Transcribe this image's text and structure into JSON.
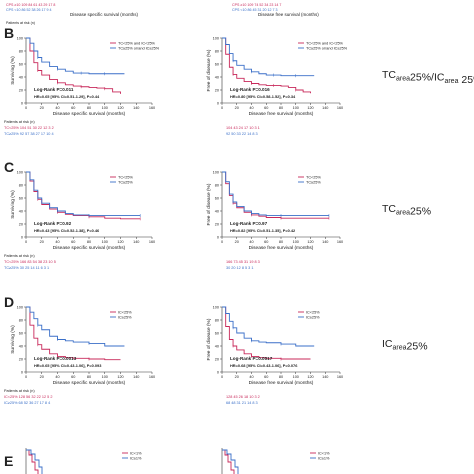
{
  "colors": {
    "red": "#c8285a",
    "blue": "#3a6fc8",
    "axis": "#333333",
    "text": "#222222"
  },
  "top_strip": {
    "left_rows": [
      "Patients at risk (n)",
      "CPS ≥10  109   84   61   43   29   17   8",
      "CPS <10  86   52   38   26   17   9   4"
    ],
    "left_xlabel": "Disease specific survival (months)",
    "right_rows": [
      "CPS ≥10  109   74   52   34   23   14   7",
      "CPS <10  86   45   31   20   12   7   3"
    ],
    "right_xlabel": "Disease free survival (months)"
  },
  "sections": [
    {
      "letter": "B",
      "side_label_html": "TC<sub>area</sub>25%/IC<sub>area</sub> 25%",
      "left_stats": [
        "Log-Rank P=0.011",
        "HR=0.65 [95% CI=0.51-1.29], P=0.44"
      ],
      "right_stats": [
        "Log-Rank P=0.016",
        "HR=0.80 [95% CI=0.58-1.52], P=0.34"
      ],
      "legend": [
        "TC<25% and IC<25%",
        "TC≥25% or/and IC≥25%"
      ],
      "risk_left": [
        "Patients at risk (n)",
        "TC<25%  104   51   30   22   12   3   2",
        "TC≥25%  92   57   38   27   17   10   4"
      ],
      "risk_right": [
        "104   43   24   17   10   3   1",
        "92   50   33   22   14   8   3"
      ]
    },
    {
      "letter": "C",
      "side_label_html": "TC<sub>area</sub>25%",
      "left_stats": [
        "Log-Rank P=0.92",
        "HR=0.43 [95% CI=0.52-1.38], P=0.46"
      ],
      "right_stats": [
        "Log-Rank P=0.97",
        "HR=0.82 [95% CI=0.51-1.35], P=0.42"
      ],
      "legend": [
        "TC<25%",
        "TC≥25%"
      ],
      "risk_left": [
        "Patients at risk (n)",
        "TC<25%  166   83   54   38   23   10   5",
        "TC≥25%  30   25   14   11   6   3   1"
      ],
      "risk_right": [
        "166   73   45   31   19   8   3",
        "30   20   12   8   5   3   1"
      ]
    },
    {
      "letter": "D",
      "side_label_html": "IC<sub>area</sub>25%",
      "left_stats": [
        "Log-Rank P=0.0013",
        "HR=0.65 [95% CI=0.43-1.06], P=0.093"
      ],
      "right_stats": [
        "Log-Rank P=0.0017",
        "HR=0.68 [95% CI=0.43-1.06], P=0.076"
      ],
      "legend": [
        "IC<25%",
        "IC≥25%"
      ],
      "risk_left": [
        "Patients at risk (n)",
        "IC<25%  128   56   32   22   12   5   2",
        "IC≥25%  68   52   36   27   17   8   4"
      ],
      "risk_right": [
        "128   45   26   18   10   3   2",
        "68   48   31   21   14   8   3"
      ]
    }
  ],
  "section_e": {
    "letter": "E",
    "legend": [
      "IC<1%",
      "IC≥1%"
    ]
  },
  "chart_data": [
    {
      "type": "line",
      "panel": "B-left",
      "xlabel": "Disease specific survival (months)",
      "ylabel": "Surviving (%)",
      "xlim": [
        0,
        160
      ],
      "ylim": [
        0,
        100
      ],
      "xticks": [
        0,
        20,
        40,
        60,
        80,
        100,
        120,
        140,
        160
      ],
      "yticks": [
        0,
        20,
        40,
        60,
        80,
        100
      ],
      "series": [
        {
          "color": "red",
          "x": [
            0,
            5,
            10,
            15,
            20,
            30,
            40,
            50,
            60,
            70,
            80,
            90,
            100,
            110,
            120
          ],
          "y": [
            100,
            80,
            62,
            50,
            43,
            36,
            31,
            28,
            26,
            25,
            24,
            23,
            22,
            17,
            14
          ]
        },
        {
          "color": "blue",
          "x": [
            0,
            5,
            10,
            15,
            20,
            30,
            40,
            50,
            60,
            70,
            80,
            90,
            100,
            115,
            125
          ],
          "y": [
            100,
            92,
            80,
            70,
            63,
            56,
            52,
            49,
            46,
            46,
            45,
            45,
            45,
            45,
            45
          ]
        }
      ]
    },
    {
      "type": "line",
      "panel": "B-right",
      "xlabel": "Disease free survival (months)",
      "ylabel": "Free of disease (%)",
      "xlim": [
        0,
        160
      ],
      "ylim": [
        0,
        100
      ],
      "xticks": [
        0,
        20,
        40,
        60,
        80,
        100,
        120,
        140,
        160
      ],
      "yticks": [
        0,
        20,
        40,
        60,
        80,
        100
      ],
      "series": [
        {
          "color": "red",
          "x": [
            0,
            5,
            10,
            15,
            20,
            30,
            40,
            50,
            60,
            70,
            80,
            90,
            100,
            110,
            120
          ],
          "y": [
            100,
            75,
            55,
            44,
            38,
            33,
            30,
            28,
            27,
            27,
            26,
            24,
            20,
            17,
            15
          ]
        },
        {
          "color": "blue",
          "x": [
            0,
            5,
            10,
            15,
            20,
            30,
            40,
            50,
            60,
            70,
            80,
            90,
            100,
            115,
            125
          ],
          "y": [
            100,
            90,
            76,
            65,
            58,
            52,
            48,
            45,
            43,
            43,
            42,
            42,
            42,
            42,
            42
          ]
        }
      ]
    },
    {
      "type": "line",
      "panel": "C-left",
      "xlabel": "Disease specific survival (months)",
      "ylabel": "Surviving (%)",
      "xlim": [
        0,
        160
      ],
      "ylim": [
        0,
        100
      ],
      "xticks": [
        0,
        20,
        40,
        60,
        80,
        100,
        120,
        140,
        160
      ],
      "yticks": [
        0,
        20,
        40,
        60,
        80,
        100
      ],
      "series": [
        {
          "color": "red",
          "x": [
            0,
            5,
            10,
            15,
            20,
            30,
            40,
            50,
            60,
            80,
            100,
            120,
            145
          ],
          "y": [
            100,
            86,
            70,
            58,
            50,
            43,
            38,
            35,
            33,
            31,
            29,
            28,
            28
          ]
        },
        {
          "color": "blue",
          "x": [
            0,
            5,
            10,
            15,
            20,
            30,
            40,
            50,
            60,
            80,
            100,
            120,
            145
          ],
          "y": [
            100,
            88,
            72,
            60,
            52,
            45,
            40,
            36,
            34,
            33,
            33,
            33,
            33
          ]
        }
      ]
    },
    {
      "type": "line",
      "panel": "C-right",
      "xlabel": "Disease free survival (months)",
      "ylabel": "Free of disease (%)",
      "xlim": [
        0,
        160
      ],
      "ylim": [
        0,
        100
      ],
      "xticks": [
        0,
        20,
        40,
        60,
        80,
        100,
        120,
        140,
        160
      ],
      "yticks": [
        0,
        20,
        40,
        60,
        80,
        100
      ],
      "series": [
        {
          "color": "red",
          "x": [
            0,
            5,
            10,
            15,
            20,
            30,
            40,
            50,
            60,
            80,
            100,
            120,
            145
          ],
          "y": [
            100,
            82,
            64,
            52,
            45,
            38,
            34,
            32,
            30,
            29,
            29,
            29,
            29
          ]
        },
        {
          "color": "blue",
          "x": [
            0,
            5,
            10,
            15,
            20,
            30,
            40,
            50,
            60,
            80,
            100,
            120,
            145
          ],
          "y": [
            100,
            85,
            66,
            54,
            47,
            40,
            36,
            34,
            33,
            33,
            33,
            33,
            33
          ]
        }
      ]
    },
    {
      "type": "line",
      "panel": "D-left",
      "xlabel": "Disease specific survival (months)",
      "ylabel": "Surviving (%)",
      "xlim": [
        0,
        160
      ],
      "ylim": [
        0,
        100
      ],
      "xticks": [
        0,
        20,
        40,
        60,
        80,
        100,
        120,
        140,
        160
      ],
      "yticks": [
        0,
        20,
        40,
        60,
        80,
        100
      ],
      "series": [
        {
          "color": "red",
          "x": [
            0,
            5,
            10,
            15,
            20,
            30,
            40,
            50,
            60,
            80,
            100,
            120
          ],
          "y": [
            100,
            72,
            52,
            42,
            35,
            28,
            24,
            22,
            21,
            20,
            19,
            19
          ]
        },
        {
          "color": "blue",
          "x": [
            0,
            5,
            10,
            15,
            20,
            30,
            40,
            50,
            60,
            80,
            100,
            125
          ],
          "y": [
            100,
            92,
            82,
            72,
            65,
            55,
            50,
            48,
            46,
            44,
            40,
            40
          ]
        }
      ]
    },
    {
      "type": "line",
      "panel": "D-right",
      "xlabel": "Disease free survival (months)",
      "ylabel": "Free of disease (%)",
      "xlim": [
        0,
        160
      ],
      "ylim": [
        0,
        100
      ],
      "xticks": [
        0,
        20,
        40,
        60,
        80,
        100,
        120,
        140,
        160
      ],
      "yticks": [
        0,
        20,
        40,
        60,
        80,
        100
      ],
      "series": [
        {
          "color": "red",
          "x": [
            0,
            5,
            10,
            15,
            20,
            30,
            40,
            50,
            60,
            80,
            100,
            120
          ],
          "y": [
            100,
            70,
            50,
            40,
            34,
            28,
            24,
            22,
            21,
            20,
            20,
            20
          ]
        },
        {
          "color": "blue",
          "x": [
            0,
            5,
            10,
            15,
            20,
            30,
            40,
            50,
            60,
            80,
            100,
            125
          ],
          "y": [
            100,
            90,
            78,
            68,
            60,
            52,
            48,
            46,
            45,
            43,
            40,
            40
          ]
        }
      ]
    }
  ]
}
